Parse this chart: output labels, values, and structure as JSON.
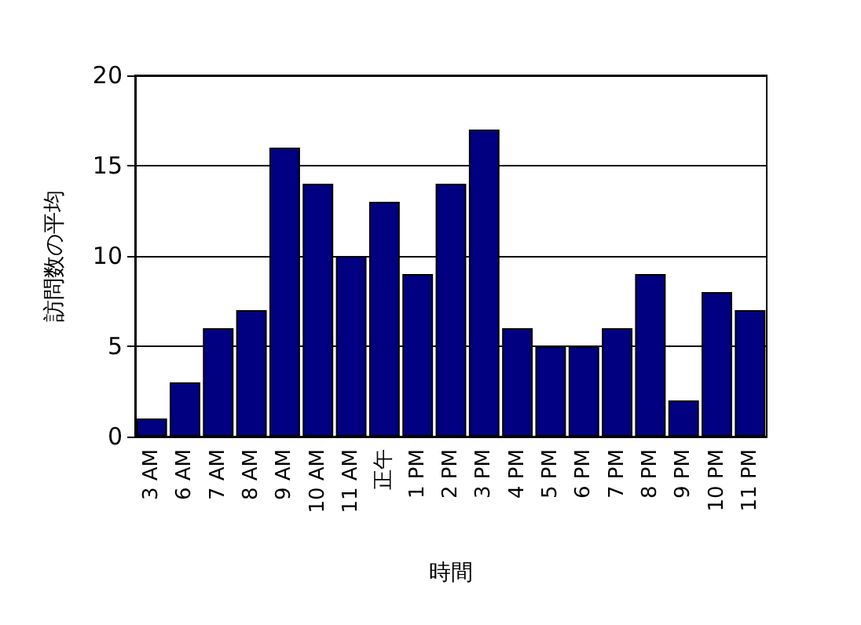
{
  "chart_data": {
    "type": "bar",
    "xlabel": "時間",
    "ylabel": "訪問数の平均",
    "categories": [
      "3 AM",
      "6 AM",
      "7 AM",
      "8 AM",
      "9 AM",
      "10 AM",
      "11 AM",
      "正午",
      "1 PM",
      "2 PM",
      "3 PM",
      "4 PM",
      "5 PM",
      "6 PM",
      "7 PM",
      "8 PM",
      "9 PM",
      "10 PM",
      "11 PM"
    ],
    "values": [
      1,
      3,
      6,
      7,
      16,
      14,
      10,
      13,
      9,
      14,
      17,
      6,
      5,
      5,
      6,
      9,
      2,
      8,
      7
    ],
    "color": "#000080",
    "ylim": [
      0,
      20
    ],
    "yticks": [
      0,
      5,
      10,
      15,
      20
    ],
    "grid": "y"
  }
}
